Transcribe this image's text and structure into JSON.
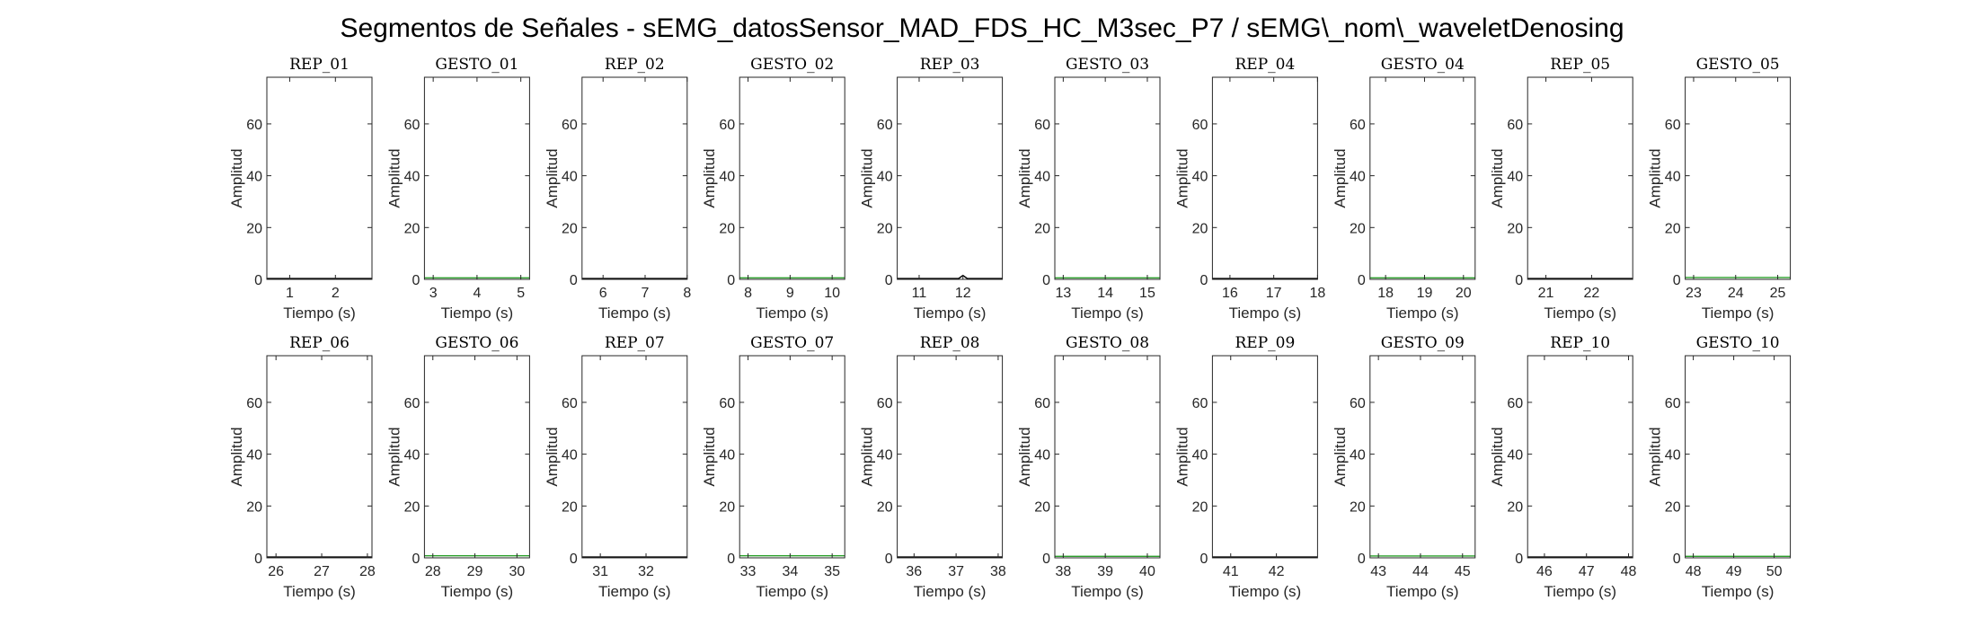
{
  "title": "Segmentos de Señales - sEMG_datosSensor_MAD_FDS_HC_M3sec_P7 / sEMG\\_nom\\_waveletDenosing",
  "colors": {
    "rep": "#000000",
    "gesto": "#2ca02c",
    "axes": "#262626",
    "background": "#ffffff"
  },
  "chart_data": [
    {
      "type": "line",
      "title": "REP_01",
      "xlabel": "Tiempo (s)",
      "ylabel": "Amplitud",
      "xlim": [
        0.5,
        2.8
      ],
      "ylim": [
        0,
        78
      ],
      "xticks": [
        1,
        2
      ],
      "yticks": [
        0,
        20,
        40,
        60
      ],
      "series": [
        {
          "color": "#000000",
          "x": [
            0.5,
            2.8
          ],
          "y": [
            0.3,
            0.3
          ]
        }
      ]
    },
    {
      "type": "line",
      "title": "GESTO_01",
      "xlabel": "Tiempo (s)",
      "ylabel": "Amplitud",
      "xlim": [
        2.8,
        5.2
      ],
      "ylim": [
        0,
        78
      ],
      "xticks": [
        3,
        4,
        5
      ],
      "yticks": [
        0,
        20,
        40,
        60
      ],
      "series": [
        {
          "color": "#2ca02c",
          "x": [
            2.8,
            5.2
          ],
          "y": [
            0.6,
            0.6
          ]
        }
      ]
    },
    {
      "type": "line",
      "title": "REP_02",
      "xlabel": "Tiempo (s)",
      "ylabel": "Amplitud",
      "xlim": [
        5.5,
        8
      ],
      "ylim": [
        0,
        78
      ],
      "xticks": [
        6,
        7,
        8
      ],
      "yticks": [
        0,
        20,
        40,
        60
      ],
      "series": [
        {
          "color": "#000000",
          "x": [
            5.5,
            8
          ],
          "y": [
            0.3,
            0.3
          ]
        }
      ]
    },
    {
      "type": "line",
      "title": "GESTO_02",
      "xlabel": "Tiempo (s)",
      "ylabel": "Amplitud",
      "xlim": [
        7.8,
        10.3
      ],
      "ylim": [
        0,
        78
      ],
      "xticks": [
        8,
        9,
        10
      ],
      "yticks": [
        0,
        20,
        40,
        60
      ],
      "series": [
        {
          "color": "#2ca02c",
          "x": [
            7.8,
            10.3
          ],
          "y": [
            0.6,
            0.6
          ]
        }
      ]
    },
    {
      "type": "line",
      "title": "REP_03",
      "xlabel": "Tiempo (s)",
      "ylabel": "Amplitud",
      "xlim": [
        10.5,
        12.9
      ],
      "ylim": [
        0,
        78
      ],
      "xticks": [
        11,
        12
      ],
      "yticks": [
        0,
        20,
        40,
        60
      ],
      "series": [
        {
          "color": "#000000",
          "x": [
            10.5,
            11.9,
            12,
            12.1,
            12.9
          ],
          "y": [
            0.3,
            0.3,
            1.5,
            0.3,
            0.3
          ]
        }
      ]
    },
    {
      "type": "line",
      "title": "GESTO_03",
      "xlabel": "Tiempo (s)",
      "ylabel": "Amplitud",
      "xlim": [
        12.8,
        15.3
      ],
      "ylim": [
        0,
        78
      ],
      "xticks": [
        13,
        14,
        15
      ],
      "yticks": [
        0,
        20,
        40,
        60
      ],
      "series": [
        {
          "color": "#2ca02c",
          "x": [
            12.8,
            15.3
          ],
          "y": [
            0.6,
            0.6
          ]
        }
      ]
    },
    {
      "type": "line",
      "title": "REP_04",
      "xlabel": "Tiempo (s)",
      "ylabel": "Amplitud",
      "xlim": [
        15.6,
        18
      ],
      "ylim": [
        0,
        78
      ],
      "xticks": [
        16,
        17,
        18
      ],
      "yticks": [
        0,
        20,
        40,
        60
      ],
      "series": [
        {
          "color": "#000000",
          "x": [
            15.6,
            18
          ],
          "y": [
            0.3,
            0.3
          ]
        }
      ]
    },
    {
      "type": "line",
      "title": "GESTO_04",
      "xlabel": "Tiempo (s)",
      "ylabel": "Amplitud",
      "xlim": [
        17.6,
        20.3
      ],
      "ylim": [
        0,
        78
      ],
      "xticks": [
        18,
        19,
        20
      ],
      "yticks": [
        0,
        20,
        40,
        60
      ],
      "series": [
        {
          "color": "#2ca02c",
          "x": [
            17.6,
            20.3
          ],
          "y": [
            0.6,
            0.6
          ]
        }
      ]
    },
    {
      "type": "line",
      "title": "REP_05",
      "xlabel": "Tiempo (s)",
      "ylabel": "Amplitud",
      "xlim": [
        20.6,
        22.9
      ],
      "ylim": [
        0,
        78
      ],
      "xticks": [
        21,
        22
      ],
      "yticks": [
        0,
        20,
        40,
        60
      ],
      "series": [
        {
          "color": "#000000",
          "x": [
            20.6,
            22.9
          ],
          "y": [
            0.3,
            0.3
          ]
        }
      ]
    },
    {
      "type": "line",
      "title": "GESTO_05",
      "xlabel": "Tiempo (s)",
      "ylabel": "Amplitud",
      "xlim": [
        22.8,
        25.3
      ],
      "ylim": [
        0,
        78
      ],
      "xticks": [
        23,
        24,
        25
      ],
      "yticks": [
        0,
        20,
        40,
        60
      ],
      "series": [
        {
          "color": "#2ca02c",
          "x": [
            22.8,
            25.3
          ],
          "y": [
            0.7,
            0.7
          ]
        }
      ]
    },
    {
      "type": "line",
      "title": "REP_06",
      "xlabel": "Tiempo (s)",
      "ylabel": "Amplitud",
      "xlim": [
        25.8,
        28.1
      ],
      "ylim": [
        0,
        78
      ],
      "xticks": [
        26,
        27,
        28
      ],
      "yticks": [
        0,
        20,
        40,
        60
      ],
      "series": [
        {
          "color": "#000000",
          "x": [
            25.8,
            28.1
          ],
          "y": [
            0.3,
            0.3
          ]
        }
      ]
    },
    {
      "type": "line",
      "title": "GESTO_06",
      "xlabel": "Tiempo (s)",
      "ylabel": "Amplitud",
      "xlim": [
        27.8,
        30.3
      ],
      "ylim": [
        0,
        78
      ],
      "xticks": [
        28,
        29,
        30
      ],
      "yticks": [
        0,
        20,
        40,
        60
      ],
      "series": [
        {
          "color": "#2ca02c",
          "x": [
            27.8,
            30.3
          ],
          "y": [
            0.8,
            0.8
          ]
        }
      ]
    },
    {
      "type": "line",
      "title": "REP_07",
      "xlabel": "Tiempo (s)",
      "ylabel": "Amplitud",
      "xlim": [
        30.6,
        32.9
      ],
      "ylim": [
        0,
        78
      ],
      "xticks": [
        31,
        32
      ],
      "yticks": [
        0,
        20,
        40,
        60
      ],
      "series": [
        {
          "color": "#000000",
          "x": [
            30.6,
            32.9
          ],
          "y": [
            0.3,
            0.3
          ]
        }
      ]
    },
    {
      "type": "line",
      "title": "GESTO_07",
      "xlabel": "Tiempo (s)",
      "ylabel": "Amplitud",
      "xlim": [
        32.8,
        35.3
      ],
      "ylim": [
        0,
        78
      ],
      "xticks": [
        33,
        34,
        35
      ],
      "yticks": [
        0,
        20,
        40,
        60
      ],
      "series": [
        {
          "color": "#2ca02c",
          "x": [
            32.8,
            35.3
          ],
          "y": [
            0.8,
            0.8
          ]
        }
      ]
    },
    {
      "type": "line",
      "title": "REP_08",
      "xlabel": "Tiempo (s)",
      "ylabel": "Amplitud",
      "xlim": [
        35.6,
        38.1
      ],
      "ylim": [
        0,
        78
      ],
      "xticks": [
        36,
        37,
        38
      ],
      "yticks": [
        0,
        20,
        40,
        60
      ],
      "series": [
        {
          "color": "#000000",
          "x": [
            35.6,
            38.1
          ],
          "y": [
            0.3,
            0.3
          ]
        }
      ]
    },
    {
      "type": "line",
      "title": "GESTO_08",
      "xlabel": "Tiempo (s)",
      "ylabel": "Amplitud",
      "xlim": [
        37.8,
        40.3
      ],
      "ylim": [
        0,
        78
      ],
      "xticks": [
        38,
        39,
        40
      ],
      "yticks": [
        0,
        20,
        40,
        60
      ],
      "series": [
        {
          "color": "#2ca02c",
          "x": [
            37.8,
            40.3
          ],
          "y": [
            0.6,
            0.6
          ]
        }
      ]
    },
    {
      "type": "line",
      "title": "REP_09",
      "xlabel": "Tiempo (s)",
      "ylabel": "Amplitud",
      "xlim": [
        40.6,
        42.9
      ],
      "ylim": [
        0,
        78
      ],
      "xticks": [
        41,
        42
      ],
      "yticks": [
        0,
        20,
        40,
        60
      ],
      "series": [
        {
          "color": "#000000",
          "x": [
            40.6,
            42.9
          ],
          "y": [
            0.3,
            0.3
          ]
        }
      ]
    },
    {
      "type": "line",
      "title": "GESTO_09",
      "xlabel": "Tiempo (s)",
      "ylabel": "Amplitud",
      "xlim": [
        42.8,
        45.3
      ],
      "ylim": [
        0,
        78
      ],
      "xticks": [
        43,
        44,
        45
      ],
      "yticks": [
        0,
        20,
        40,
        60
      ],
      "series": [
        {
          "color": "#2ca02c",
          "x": [
            42.8,
            45.3
          ],
          "y": [
            0.7,
            0.7
          ]
        }
      ]
    },
    {
      "type": "line",
      "title": "REP_10",
      "xlabel": "Tiempo (s)",
      "ylabel": "Amplitud",
      "xlim": [
        45.6,
        48.1
      ],
      "ylim": [
        0,
        78
      ],
      "xticks": [
        46,
        47,
        48
      ],
      "yticks": [
        0,
        20,
        40,
        60
      ],
      "series": [
        {
          "color": "#000000",
          "x": [
            45.6,
            48.1
          ],
          "y": [
            0.3,
            0.3
          ]
        }
      ]
    },
    {
      "type": "line",
      "title": "GESTO_10",
      "xlabel": "Tiempo (s)",
      "ylabel": "Amplitud",
      "xlim": [
        47.8,
        50.4
      ],
      "ylim": [
        0,
        78
      ],
      "xticks": [
        48,
        49,
        50
      ],
      "yticks": [
        0,
        20,
        40,
        60
      ],
      "series": [
        {
          "color": "#2ca02c",
          "x": [
            47.8,
            50.4
          ],
          "y": [
            0.6,
            0.6
          ]
        }
      ]
    }
  ]
}
